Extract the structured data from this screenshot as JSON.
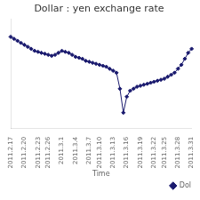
{
  "chart_data": {
    "type": "line",
    "title": "Dollar : yen exchange rate",
    "xlabel": "Time",
    "categories": [
      "2011.2.17",
      null,
      null,
      null,
      "2011.2.20",
      null,
      null,
      null,
      "2011.2.23",
      null,
      null,
      "2011.2.26",
      null,
      null,
      null,
      "2011.3.1",
      null,
      null,
      null,
      "2011.3.4",
      null,
      null,
      null,
      "2011.3.7",
      null,
      null,
      "2011.3.10",
      null,
      null,
      null,
      "2011.3.13",
      null,
      null,
      null,
      "2011.3.16",
      null,
      null,
      null,
      "2011.3.19",
      null,
      null,
      null,
      "2011.3.22",
      null,
      null,
      "2011.3.25",
      null,
      null,
      null,
      "2011.3.28",
      null,
      null,
      null,
      "2011.3.31"
    ],
    "series": [
      {
        "name": "Dol",
        "color": "#1a1a6e",
        "marker": "diamond",
        "values": [
          83.6,
          83.5,
          83.4,
          83.3,
          83.2,
          83.1,
          83.0,
          82.9,
          82.85,
          82.8,
          82.75,
          82.7,
          82.65,
          82.7,
          82.8,
          82.9,
          82.85,
          82.8,
          82.7,
          82.6,
          82.55,
          82.5,
          82.4,
          82.35,
          82.3,
          82.25,
          82.2,
          82.15,
          82.1,
          82.0,
          81.9,
          81.8,
          81.0,
          79.8,
          80.6,
          80.9,
          81.0,
          81.1,
          81.15,
          81.2,
          81.25,
          81.3,
          81.35,
          81.4,
          81.45,
          81.5,
          81.6,
          81.7,
          81.8,
          82.0,
          82.2,
          82.5,
          82.8,
          83.0
        ]
      }
    ],
    "ylim": [
      79.0,
      84.5
    ],
    "grid": false,
    "legend": "lower right",
    "tick_labels": "x"
  }
}
